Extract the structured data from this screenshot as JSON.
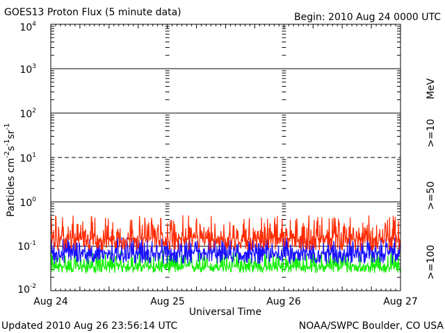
{
  "title_left": "GOES13 Proton Flux (5 minute data)",
  "title_right": "Begin: 2010 Aug 24 0000 UTC",
  "footer_left": "Updated 2010 Aug 26 23:56:14 UTC",
  "footer_right": "NOAA/SWPC Boulder, CO USA",
  "colors": {
    "p10": "#ff2a00",
    "p50": "#1a0fff",
    "p100": "#10f000",
    "axis": "#000000"
  },
  "chart_data": {
    "type": "line",
    "title": "GOES13 Proton Flux (5 minute data)",
    "xlabel": "Universal Time",
    "ylabel": {
      "base": "Particles cm",
      "e1": "-2",
      "p2": "s",
      "e2": "-1",
      "p3": "sr",
      "e3": "-1"
    },
    "x_ticks": [
      "Aug 24",
      "Aug 25",
      "Aug 26",
      "Aug 27"
    ],
    "xlim_days": [
      0,
      3
    ],
    "y_scale": "log",
    "ylim": [
      0.01,
      10000
    ],
    "y_ticks": [
      {
        "base": "10",
        "exp": "-2"
      },
      {
        "base": "10",
        "exp": "-1"
      },
      {
        "base": "10",
        "exp": "0"
      },
      {
        "base": "10",
        "exp": "1"
      },
      {
        "base": "10",
        "exp": "2"
      },
      {
        "base": "10",
        "exp": "3"
      },
      {
        "base": "10",
        "exp": "4"
      }
    ],
    "unit_label": "MeV",
    "series": [
      {
        "name": ">=10",
        "color": "#ff2a00",
        "typical": 0.15,
        "range": [
          0.08,
          0.5
        ]
      },
      {
        "name": ">=50",
        "color": "#1a0fff",
        "typical": 0.07,
        "range": [
          0.04,
          0.16
        ]
      },
      {
        "name": ">=100",
        "color": "#10f000",
        "typical": 0.035,
        "range": [
          0.025,
          0.08
        ]
      }
    ]
  }
}
